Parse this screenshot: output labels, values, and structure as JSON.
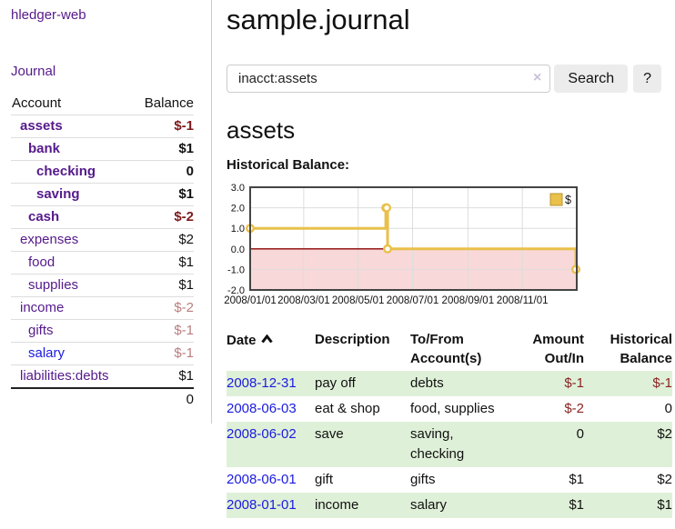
{
  "sidebar": {
    "brand": "hledger-web",
    "nav": {
      "journal": "Journal"
    },
    "accounts_table": {
      "headers": {
        "account": "Account",
        "balance": "Balance"
      },
      "rows": [
        {
          "account": "assets",
          "depth": 1,
          "bold": true,
          "link_color": "purple",
          "balance": "$-1",
          "balance_style": "neg-strong"
        },
        {
          "account": "bank",
          "depth": 2,
          "bold": true,
          "link_color": "purple",
          "balance": "$1",
          "balance_style": "pos"
        },
        {
          "account": "checking",
          "depth": 3,
          "bold": true,
          "link_color": "purple",
          "balance": "0",
          "balance_style": "pos"
        },
        {
          "account": "saving",
          "depth": 3,
          "bold": true,
          "link_color": "purple",
          "balance": "$1",
          "balance_style": "pos"
        },
        {
          "account": "cash",
          "depth": 2,
          "bold": true,
          "link_color": "purple",
          "balance": "$-2",
          "balance_style": "neg-strong"
        },
        {
          "account": "expenses",
          "depth": 1,
          "bold": false,
          "link_color": "purple",
          "balance": "$2",
          "balance_style": "pos"
        },
        {
          "account": "food",
          "depth": 2,
          "bold": false,
          "link_color": "purple",
          "balance": "$1",
          "balance_style": "pos"
        },
        {
          "account": "supplies",
          "depth": 2,
          "bold": false,
          "link_color": "purple",
          "balance": "$1",
          "balance_style": "pos"
        },
        {
          "account": "income",
          "depth": 1,
          "bold": false,
          "link_color": "purple",
          "balance": "$-2",
          "balance_style": "neg-soft"
        },
        {
          "account": "gifts",
          "depth": 2,
          "bold": false,
          "link_color": "purple",
          "balance": "$-1",
          "balance_style": "neg-soft"
        },
        {
          "account": "salary",
          "depth": 2,
          "bold": false,
          "link_color": "blue",
          "balance": "$-1",
          "balance_style": "neg-soft"
        },
        {
          "account": "liabilities:debts",
          "depth": 1,
          "bold": false,
          "link_color": "purple",
          "balance": "$1",
          "balance_style": "pos"
        }
      ],
      "total": "0"
    }
  },
  "header": {
    "title": "sample.journal"
  },
  "search": {
    "query": "inacct:assets",
    "clear_icon": "×",
    "button": "Search",
    "help_button": "?"
  },
  "account_page": {
    "title": "assets",
    "chart_label": "Historical Balance:"
  },
  "chart_data": {
    "type": "line",
    "step": true,
    "title": "Historical Balance:",
    "legend": [
      "$"
    ],
    "legend_position": "top-right",
    "grid": true,
    "ylim": [
      -2,
      3
    ],
    "y_ticks": [
      3.0,
      2.0,
      1.0,
      0.0,
      -1.0,
      -2.0
    ],
    "xlim_days": [
      0,
      366
    ],
    "x_ticks_days": [
      0,
      60,
      121,
      182,
      244,
      305
    ],
    "x_tick_labels": [
      "2008/01/01",
      "2008/03/01",
      "2008/05/01",
      "2008/07/01",
      "2008/09/01",
      "2008/11/01"
    ],
    "series": [
      {
        "name": "$",
        "color": "#e9c04a",
        "points": [
          {
            "date": "2008-01-01",
            "day": 0,
            "value": 1
          },
          {
            "date": "2008-06-01",
            "day": 152,
            "value": 2
          },
          {
            "date": "2008-06-02",
            "day": 153,
            "value": 2
          },
          {
            "date": "2008-06-03",
            "day": 154,
            "value": 0
          },
          {
            "date": "2008-12-31",
            "day": 365,
            "value": -1
          }
        ]
      }
    ],
    "negative_region_color": "#f8d8d8",
    "zero_line_color": "#8b0000"
  },
  "register_table": {
    "headers": {
      "date": "Date",
      "description": "Description",
      "tofrom": "To/From Account(s)",
      "amount": "Amount Out/In",
      "balance": "Historical Balance"
    },
    "sort": {
      "column": "date",
      "direction": "ascending",
      "icon": "chevron-up"
    },
    "rows": [
      {
        "date": "2008-12-31",
        "description": "pay off",
        "accounts": "debts",
        "amount": "$-1",
        "amount_neg": true,
        "balance": "$-1",
        "balance_neg": true
      },
      {
        "date": "2008-06-03",
        "description": "eat & shop",
        "accounts": "food, supplies",
        "amount": "$-2",
        "amount_neg": true,
        "balance": "0",
        "balance_neg": false
      },
      {
        "date": "2008-06-02",
        "description": "save",
        "accounts": "saving, checking",
        "amount": "0",
        "amount_neg": false,
        "balance": "$2",
        "balance_neg": false
      },
      {
        "date": "2008-06-01",
        "description": "gift",
        "accounts": "gifts",
        "amount": "$1",
        "amount_neg": false,
        "balance": "$2",
        "balance_neg": false
      },
      {
        "date": "2008-01-01",
        "description": "income",
        "accounts": "salary",
        "amount": "$1",
        "amount_neg": false,
        "balance": "$1",
        "balance_neg": false
      }
    ]
  },
  "colors": {
    "link-purple": "#551a8b",
    "link-blue": "#1b1be0",
    "negative-strong": "#7d1a1a",
    "negative-soft": "#b97e7e",
    "row-green": "#dff0d8",
    "chart-gold": "#e9c04a",
    "chart-pink": "#f8d8d8",
    "zero-line": "#8b0000"
  }
}
